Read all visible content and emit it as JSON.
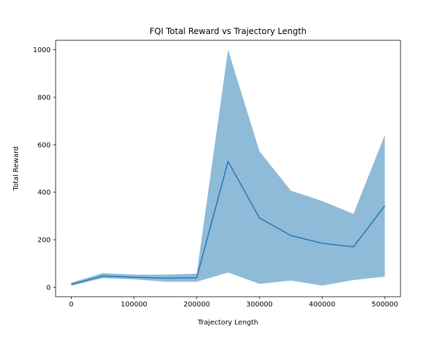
{
  "chart_data": {
    "type": "line",
    "title": "FQI Total Reward vs Trajectory Length",
    "xlabel": "Trajectory Length",
    "ylabel": "Total Reward",
    "xlim": [
      -25000,
      525000
    ],
    "ylim": [
      -40,
      1040
    ],
    "xticks": [
      0,
      100000,
      200000,
      300000,
      400000,
      500000
    ],
    "yticks": [
      0,
      200,
      400,
      600,
      800,
      1000
    ],
    "grid": false,
    "series": [
      {
        "x": [
          0,
          50000,
          100000,
          150000,
          200000,
          250000,
          300000,
          350000,
          400000,
          450000,
          500000
        ],
        "mean": [
          12,
          47,
          42,
          38,
          40,
          530,
          292,
          218,
          185,
          170,
          343
        ],
        "lower": [
          6,
          38,
          33,
          23,
          23,
          62,
          14,
          28,
          7,
          30,
          45
        ],
        "upper": [
          19,
          59,
          53,
          53,
          57,
          1000,
          573,
          407,
          363,
          309,
          641
        ],
        "line_color": "#1f77b4",
        "band_color": "#1f77b4",
        "band_opacity": 0.5
      }
    ]
  }
}
